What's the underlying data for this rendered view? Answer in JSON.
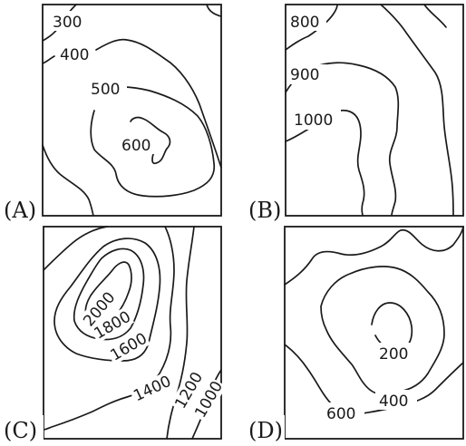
{
  "panels": [
    {
      "label": "(A)",
      "contours": [
        "300",
        "400",
        "500",
        "600"
      ]
    },
    {
      "label": "(B)",
      "contours": [
        "800",
        "900",
        "1000"
      ]
    },
    {
      "label": "(C)",
      "contours": [
        "2000",
        "1800",
        "1600",
        "1400",
        "1200",
        "1000"
      ]
    },
    {
      "label": "(D)",
      "contours": [
        "200",
        "400",
        "600"
      ]
    }
  ]
}
